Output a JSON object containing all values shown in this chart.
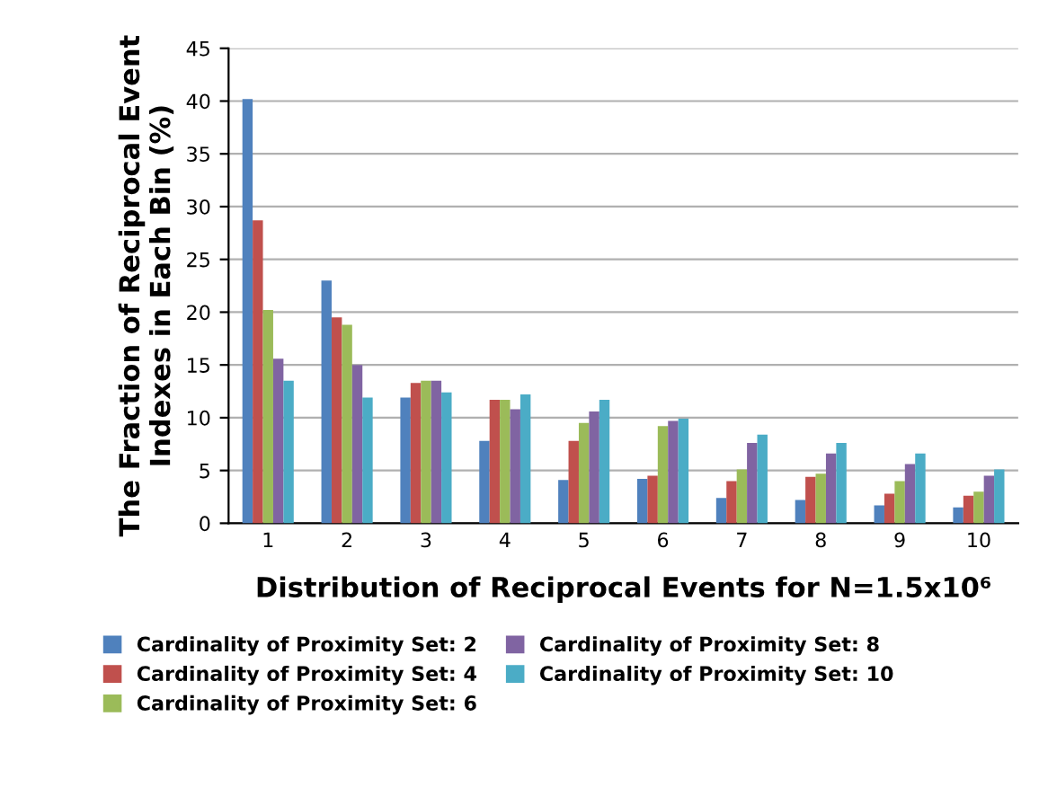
{
  "chart_data": {
    "type": "bar",
    "xlabel": "Distribution of Reciprocal Events for N=1.5x10⁶",
    "ylabel": "The Fraction of Reciprocal Event Indexes in Each Bin (%)",
    "categories": [
      "1",
      "2",
      "3",
      "4",
      "5",
      "6",
      "7",
      "8",
      "9",
      "10"
    ],
    "series": [
      {
        "name": "Cardinality of Proximity Set: 2",
        "color": "#4f81bd",
        "values": [
          40.2,
          23.0,
          11.9,
          7.8,
          4.1,
          4.2,
          2.4,
          2.2,
          1.7,
          1.5
        ]
      },
      {
        "name": "Cardinality of Proximity Set: 4",
        "color": "#c0504d",
        "values": [
          28.7,
          19.5,
          13.3,
          11.7,
          7.8,
          4.5,
          4.0,
          4.4,
          2.8,
          2.6
        ]
      },
      {
        "name": "Cardinality of Proximity Set: 6",
        "color": "#9bbb59",
        "values": [
          20.2,
          18.8,
          13.5,
          11.7,
          9.5,
          9.2,
          5.1,
          4.7,
          4.0,
          3.0
        ]
      },
      {
        "name": "Cardinality of Proximity Set: 8",
        "color": "#8064a2",
        "values": [
          15.6,
          15.0,
          13.5,
          10.8,
          10.6,
          9.7,
          7.6,
          6.6,
          5.6,
          4.5
        ]
      },
      {
        "name": "Cardinality of Proximity Set: 10",
        "color": "#4bacc6",
        "values": [
          13.5,
          11.9,
          12.4,
          12.2,
          11.7,
          9.9,
          8.4,
          7.6,
          6.6,
          5.1
        ]
      }
    ],
    "ylim": [
      0,
      45
    ],
    "yticks": [
      0,
      5,
      10,
      15,
      20,
      25,
      30,
      35,
      40,
      45
    ],
    "grid": "y",
    "legend": "bottom"
  }
}
